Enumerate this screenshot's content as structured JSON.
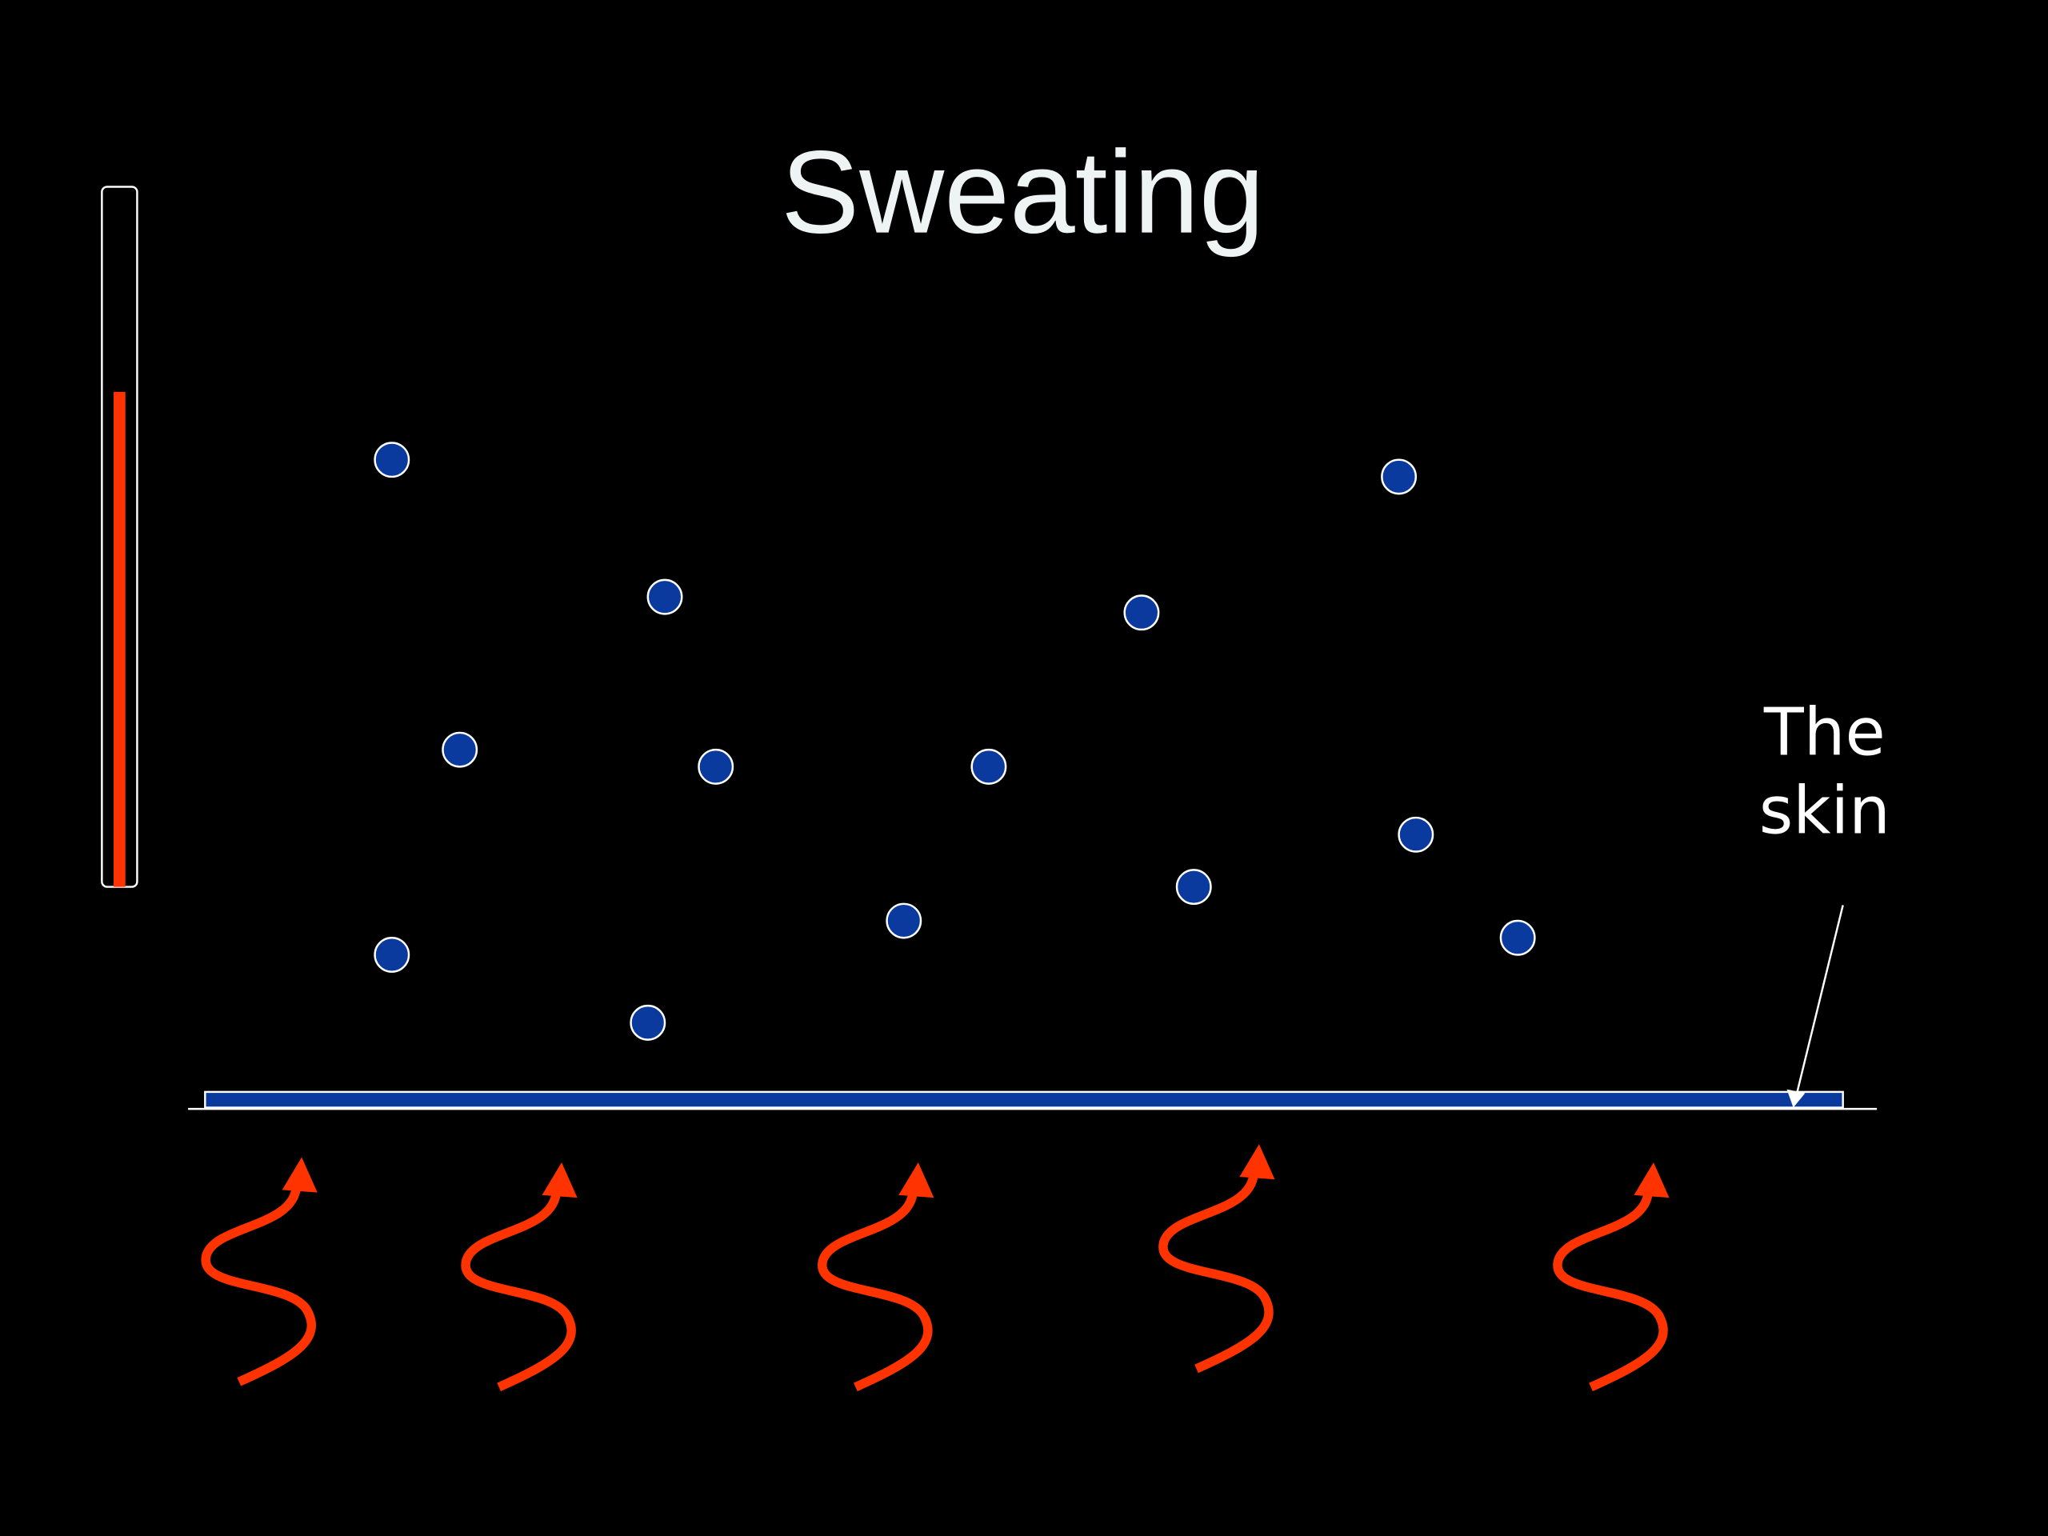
{
  "header": {
    "title": "Sweating"
  },
  "labels": {
    "skin": [
      "The",
      "skin"
    ]
  }
}
